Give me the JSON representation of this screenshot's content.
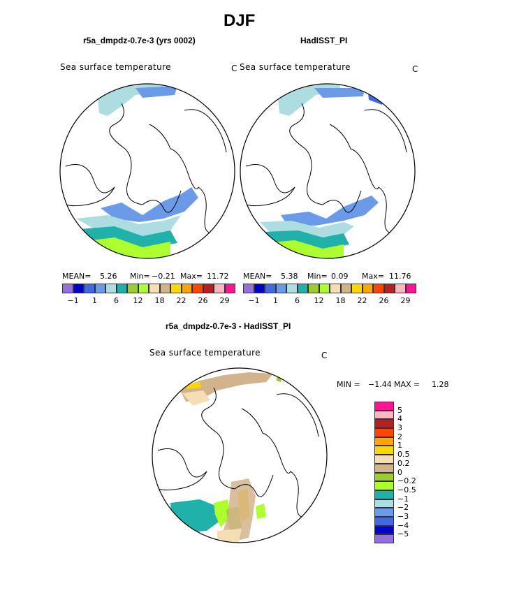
{
  "main_title": "DJF",
  "panels": {
    "left": {
      "title": "r5a_dmpdz-0.7e-3 (yrs 0002)",
      "variable": "Sea surface temperature",
      "units": "C",
      "stats": {
        "mean_label": "MEAN=",
        "mean": "5.26",
        "min_label": "Min=",
        "min": "−0.21",
        "max_label": "Max=",
        "max": "11.72"
      }
    },
    "right": {
      "title": "HadISST_PI",
      "variable": "Sea surface temperature",
      "units": "C",
      "stats": {
        "mean_label": "MEAN=",
        "mean": "5.38",
        "min_label": "Min=",
        "min": "0.09",
        "max_label": "Max=",
        "max": "11.76"
      }
    },
    "diff": {
      "title": "r5a_dmpdz-0.7e-3 - HadISST_PI",
      "variable": "Sea surface temperature",
      "units": "C",
      "stats": {
        "min_label": "MIN =",
        "min": "−1.44",
        "max_label": "MAX =",
        "max": "1.28"
      }
    }
  },
  "chart_data": [
    {
      "type": "heatmap",
      "projection": "north polar stereographic",
      "title": "r5a_dmpdz-0.7e-3 (yrs 0002)",
      "field": "Sea surface temperature",
      "units": "C",
      "mean": 5.26,
      "min": -0.21,
      "max": 11.72,
      "colorbar": {
        "orientation": "horizontal",
        "colors": [
          "#9370DB",
          "#0000CD",
          "#4169E1",
          "#6A9AE8",
          "#ADDDE0",
          "#20B2AA",
          "#9ACD32",
          "#ADFF2F",
          "#F5DEB3",
          "#D2B48C",
          "#FFD700",
          "#FFA500",
          "#FF4500",
          "#B22222",
          "#FFB6C1",
          "#FF1493"
        ],
        "tick_labels": [
          "−1",
          "1",
          "6",
          "12",
          "18",
          "22",
          "26",
          "29"
        ]
      }
    },
    {
      "type": "heatmap",
      "projection": "north polar stereographic",
      "title": "HadISST_PI",
      "field": "Sea surface temperature",
      "units": "C",
      "mean": 5.38,
      "min": 0.09,
      "max": 11.76,
      "colorbar": {
        "orientation": "horizontal",
        "colors": [
          "#9370DB",
          "#0000CD",
          "#4169E1",
          "#6A9AE8",
          "#ADDDE0",
          "#20B2AA",
          "#9ACD32",
          "#ADFF2F",
          "#F5DEB3",
          "#D2B48C",
          "#FFD700",
          "#FFA500",
          "#FF4500",
          "#B22222",
          "#FFB6C1",
          "#FF1493"
        ],
        "tick_labels": [
          "−1",
          "1",
          "6",
          "12",
          "18",
          "22",
          "26",
          "29"
        ]
      }
    },
    {
      "type": "heatmap",
      "projection": "north polar stereographic",
      "title": "r5a_dmpdz-0.7e-3 - HadISST_PI",
      "field": "Sea surface temperature",
      "units": "C",
      "min": -1.44,
      "max": 1.28,
      "colorbar": {
        "orientation": "vertical",
        "colors_top_to_bottom": [
          "#FF1493",
          "#FFB6C1",
          "#B22222",
          "#FF4500",
          "#FFA500",
          "#FFD700",
          "#F5DEB3",
          "#D2B48C",
          "#9ACD32",
          "#ADFF2F",
          "#20B2AA",
          "#ADDDE0",
          "#6A9AE8",
          "#4169E1",
          "#0000CD",
          "#9370DB"
        ],
        "tick_labels_top_to_bottom": [
          "5",
          "4",
          "3",
          "2",
          "1",
          "0.5",
          "0.2",
          "0",
          "−0.2",
          "−0.5",
          "−1",
          "−2",
          "−3",
          "−4",
          "−5"
        ]
      }
    }
  ]
}
